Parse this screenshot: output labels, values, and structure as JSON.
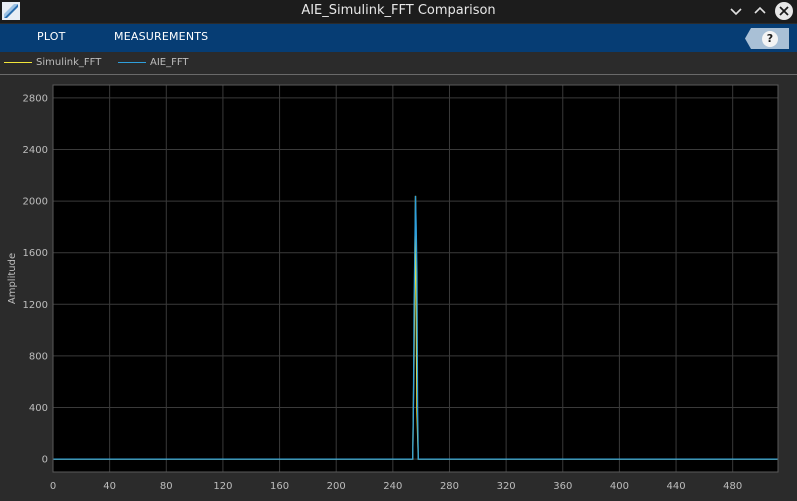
{
  "window": {
    "title": "AIE_Simulink_FFT Comparison",
    "icons": [
      "app-logo-icon",
      "minimize-icon",
      "maximize-icon",
      "close-icon"
    ]
  },
  "toolstrip": {
    "tabs": [
      {
        "label": "PLOT"
      },
      {
        "label": "MEASUREMENTS"
      }
    ],
    "help_label": "?",
    "color": "#063d74"
  },
  "legend": {
    "items": [
      {
        "label": "Simulink_FFT",
        "color": "#f2e63a"
      },
      {
        "label": "AIE_FFT",
        "color": "#2f9fdc"
      }
    ]
  },
  "chart_data": {
    "type": "line",
    "title": "",
    "xlabel": "",
    "ylabel": "Amplitude",
    "xlim": [
      0,
      512
    ],
    "ylim": [
      -100,
      2900
    ],
    "xticks": [
      0,
      40,
      80,
      120,
      160,
      200,
      240,
      280,
      320,
      360,
      400,
      440,
      480
    ],
    "yticks": [
      0,
      400,
      800,
      1200,
      1600,
      2000,
      2400,
      2800
    ],
    "grid": true,
    "background": "#000000",
    "series": [
      {
        "name": "Simulink_FFT",
        "color": "#f2e63a",
        "x": [
          0,
          254,
          255,
          256,
          257,
          258,
          512
        ],
        "y": [
          0,
          0,
          850,
          2040,
          380,
          0,
          0
        ]
      },
      {
        "name": "AIE_FFT",
        "color": "#2f9fdc",
        "x": [
          0,
          254,
          254.5,
          255,
          255.5,
          256,
          256.5,
          257,
          257.5,
          258,
          512
        ],
        "y": [
          0,
          0,
          400,
          1200,
          1600,
          2040,
          1800,
          1450,
          380,
          0,
          0
        ]
      }
    ]
  }
}
